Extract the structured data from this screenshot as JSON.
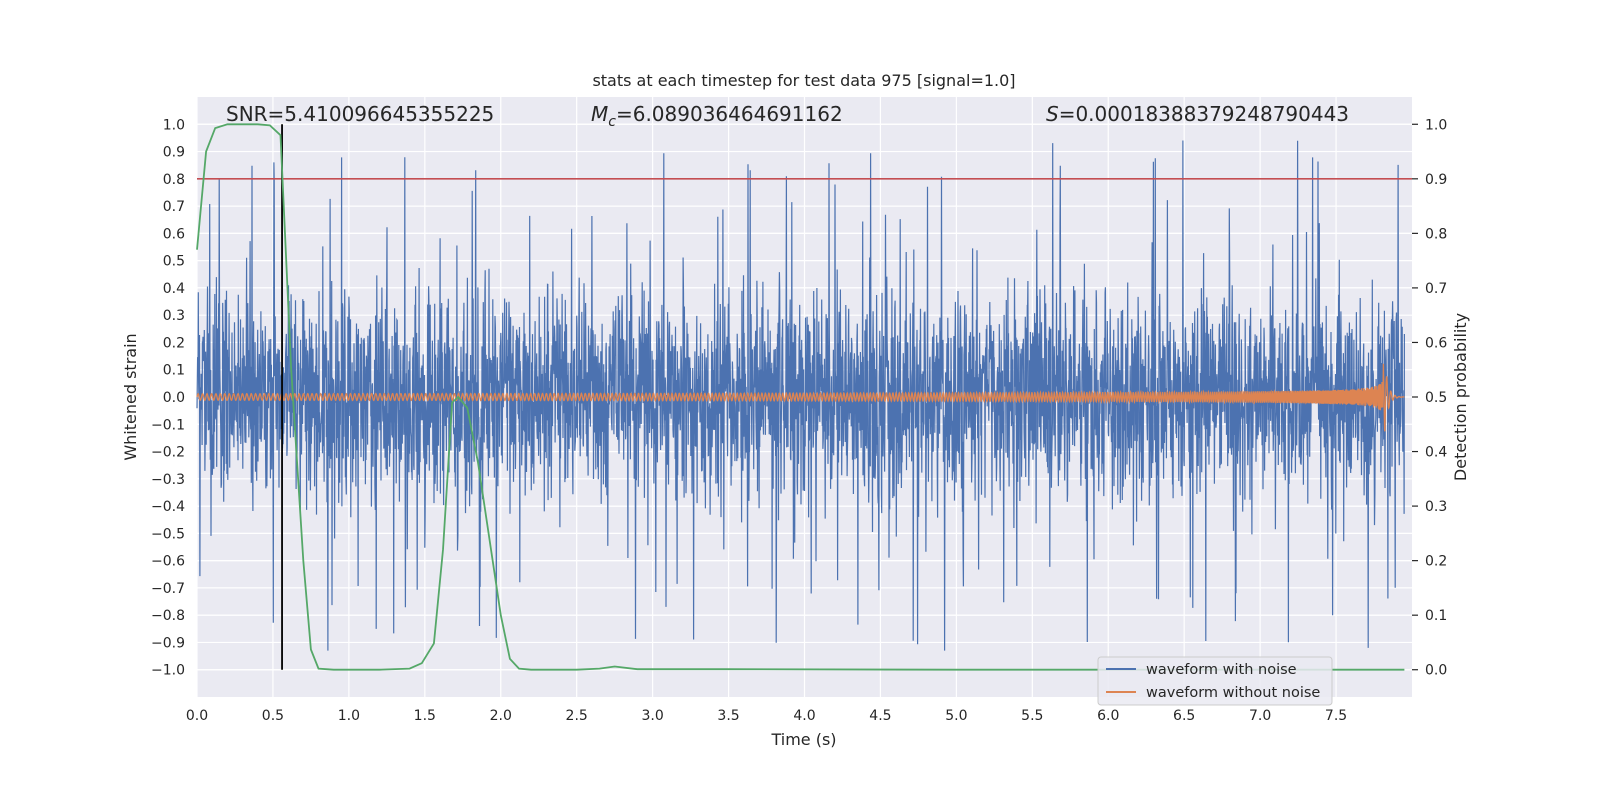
{
  "chart_data": {
    "type": "line",
    "title": "stats at each timestep for test data 975 [signal=1.0]",
    "xlabel": "Time (s)",
    "ylabel": "Whitened strain",
    "y2label": "Detection probability",
    "xlim": [
      0.0,
      8.0
    ],
    "ylim": [
      -1.1,
      1.1
    ],
    "y2lim": [
      -0.05,
      1.05
    ],
    "grid": true,
    "x_ticks": [
      0.0,
      0.5,
      1.0,
      1.5,
      2.0,
      2.5,
      3.0,
      3.5,
      4.0,
      4.5,
      5.0,
      5.5,
      6.0,
      6.5,
      7.0,
      7.5
    ],
    "x_tick_labels": [
      "0.0",
      "0.5",
      "1.0",
      "1.5",
      "2.0",
      "2.5",
      "3.0",
      "3.5",
      "4.0",
      "4.5",
      "5.0",
      "5.5",
      "6.0",
      "6.5",
      "7.0",
      "7.5"
    ],
    "y_ticks": [
      1.0,
      0.9,
      0.8,
      0.7,
      0.6,
      0.5,
      0.4,
      0.3,
      0.2,
      0.1,
      0.0,
      -0.1,
      -0.2,
      -0.3,
      -0.4,
      -0.5,
      -0.6,
      -0.7,
      -0.8,
      -0.9,
      -1.0
    ],
    "y_tick_labels": [
      "1.0",
      "0.9",
      "0.8",
      "0.7",
      "0.6",
      "0.5",
      "0.4",
      "0.3",
      "0.2",
      "0.1",
      "0.0",
      "−0.1",
      "−0.2",
      "−0.3",
      "−0.4",
      "−0.5",
      "−0.6",
      "−0.7",
      "−0.8",
      "−0.9",
      "−1.0"
    ],
    "y2_ticks": [
      1.0,
      0.9,
      0.8,
      0.7,
      0.6,
      0.5,
      0.4,
      0.3,
      0.2,
      0.1,
      0.0
    ],
    "y2_tick_labels": [
      "1.0",
      "0.9",
      "0.8",
      "0.7",
      "0.6",
      "0.5",
      "0.4",
      "0.3",
      "0.2",
      "0.1",
      "0.0"
    ],
    "annotations": {
      "snr": "SNR=5.410096645355225",
      "mc_symbol": "M",
      "mc_subscript": "c",
      "mc_value": "=6.089036464691162",
      "s_symbol": "S",
      "s_value": "=0.00018388379248790443"
    },
    "threshold_line": {
      "y2": 0.9,
      "color": "#c44e52"
    },
    "marker_line": {
      "x": 0.56,
      "y2_range": [
        0.0,
        1.0
      ],
      "color": "#000000"
    },
    "legend": {
      "placement": "lower-right",
      "entries": [
        {
          "label": "waveform with noise",
          "color": "#4c72b0"
        },
        {
          "label": "waveform without noise",
          "color": "#dd8452"
        }
      ]
    },
    "series": [
      {
        "name": "waveform with noise",
        "color": "#4c72b0",
        "axis": "left",
        "kind": "noise",
        "duration": 7.95,
        "typical_envelope": [
          -0.45,
          0.45
        ],
        "extreme_range": [
          -0.93,
          1.0
        ]
      },
      {
        "name": "waveform without noise",
        "color": "#dd8452",
        "axis": "left",
        "kind": "chirp",
        "start": 0.0,
        "merger": 7.82,
        "end": 7.95,
        "amp_start": 0.012,
        "amp_peak": 0.18,
        "min_at_merger": -0.14
      },
      {
        "name": "detection probability",
        "color": "#55a868",
        "axis": "right",
        "x": [
          0.0,
          0.06,
          0.12,
          0.2,
          0.3,
          0.4,
          0.48,
          0.55,
          0.62,
          0.7,
          0.75,
          0.8,
          0.9,
          1.0,
          1.2,
          1.4,
          1.48,
          1.56,
          1.62,
          1.68,
          1.72,
          1.78,
          1.85,
          1.92,
          2.0,
          2.06,
          2.12,
          2.2,
          2.5,
          2.65,
          2.75,
          2.9,
          3.5,
          5.0,
          6.5,
          7.95
        ],
        "y": [
          0.77,
          0.95,
          0.993,
          1.0,
          1.0,
          1.0,
          0.998,
          0.98,
          0.55,
          0.2,
          0.037,
          0.002,
          0.0,
          0.0,
          0.0,
          0.002,
          0.012,
          0.048,
          0.22,
          0.49,
          0.5,
          0.48,
          0.38,
          0.25,
          0.1,
          0.02,
          0.002,
          0.0,
          0.0,
          0.002,
          0.006,
          0.001,
          0.001,
          0.0,
          0.0,
          0.0
        ]
      }
    ]
  }
}
